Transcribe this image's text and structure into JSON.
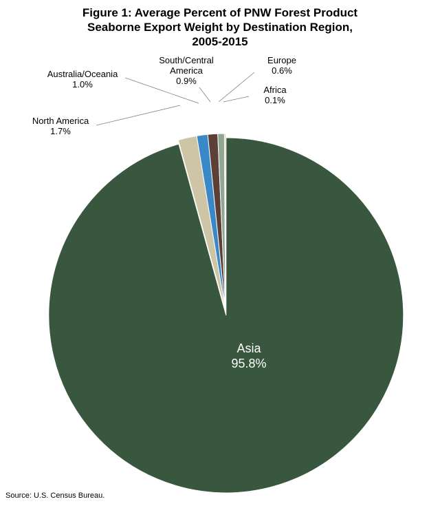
{
  "title_lines": [
    "Figure 1: Average Percent of PNW Forest Product",
    "Seaborne Export Weight by Destination Region,",
    "2005-2015"
  ],
  "source": "Source: U.S. Census Bureau.",
  "chart_data": {
    "type": "pie",
    "title": "Figure 1: Average Percent of PNW Forest Product Seaborne Export Weight by Destination Region, 2005-2015",
    "unit": "%",
    "slices": [
      {
        "name": "Asia",
        "value": 95.8,
        "label": "95.8%",
        "color": "#38573E"
      },
      {
        "name": "North America",
        "value": 1.7,
        "label": "1.7%",
        "color": "#CDC5A6"
      },
      {
        "name": "Australia/Oceania",
        "value": 1.0,
        "label": "1.0%",
        "color": "#3A88C6"
      },
      {
        "name": "South/Central America",
        "value": 0.9,
        "label": "0.9%",
        "color": "#5C4038"
      },
      {
        "name": "Europe",
        "value": 0.6,
        "label": "0.6%",
        "color": "#8FA895"
      },
      {
        "name": "Africa",
        "value": 0.1,
        "label": "0.1%",
        "color": "#D6A04A"
      }
    ],
    "label_name_lines": {
      "Asia": [
        "Asia"
      ],
      "North America": [
        "North America"
      ],
      "Australia/Oceania": [
        "Australia/Oceania"
      ],
      "South/Central America": [
        "South/Central",
        "America"
      ],
      "Europe": [
        "Europe"
      ],
      "Africa": [
        "Africa"
      ]
    }
  }
}
